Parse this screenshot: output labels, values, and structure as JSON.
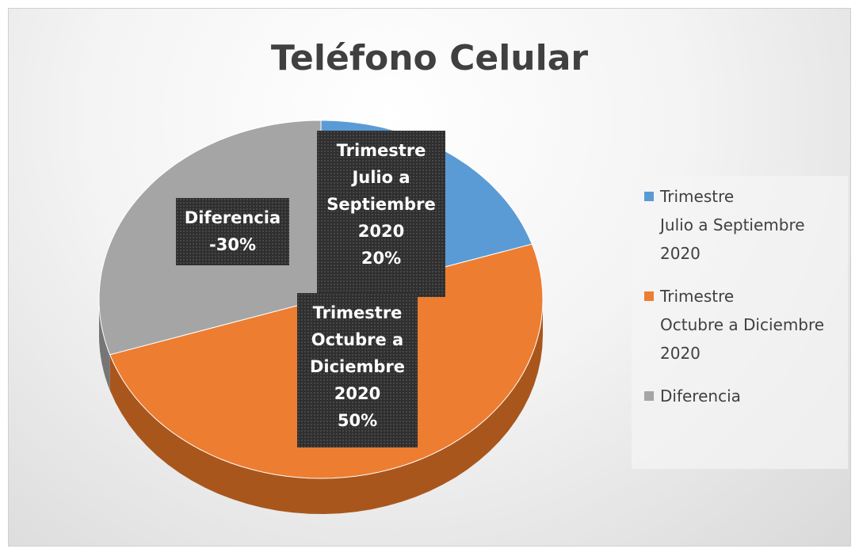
{
  "chart_data": {
    "type": "pie",
    "title": "Teléfono Celular",
    "categories": [
      "Trimestre\nJulio a Septiembre\n2020",
      "Trimestre\nOctubre a Diciembre\n2020",
      "Diferencia"
    ],
    "values": [
      20,
      50,
      -30
    ],
    "value_labels": [
      "20%",
      "50%",
      "-30%"
    ],
    "colors": [
      "#5b9bd5",
      "#ed7d31",
      "#a5a5a5"
    ],
    "side_colors": [
      "#3d6f9e",
      "#a9561d",
      "#767676"
    ],
    "legend": "right"
  }
}
